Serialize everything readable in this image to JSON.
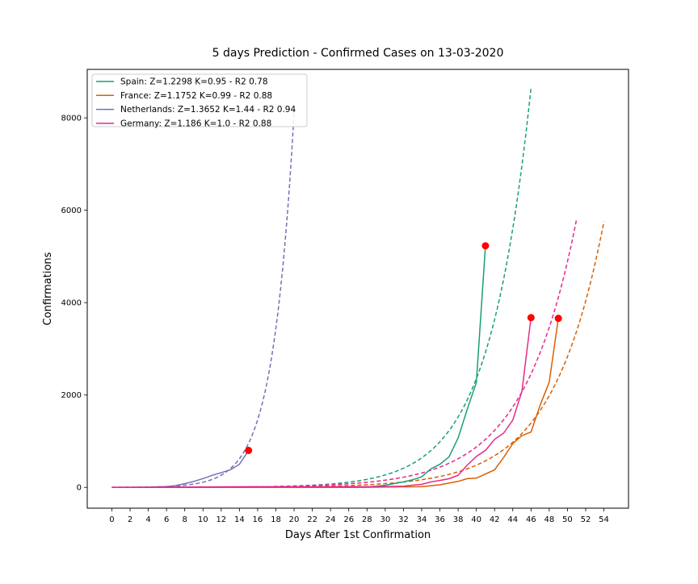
{
  "chart_data": {
    "type": "line",
    "title": "5 days Prediction - Confirmed Cases on 13-03-2020",
    "xlabel": "Days After 1st Confirmation",
    "ylabel": "Confirmations",
    "xlim": [
      -2.7,
      56.7
    ],
    "ylim": [
      -450,
      9050
    ],
    "x_ticks": [
      0,
      2,
      4,
      6,
      8,
      10,
      12,
      14,
      16,
      18,
      20,
      22,
      24,
      26,
      28,
      30,
      32,
      34,
      36,
      38,
      40,
      42,
      44,
      46,
      48,
      50,
      52,
      54
    ],
    "y_ticks": [
      0,
      2000,
      4000,
      6000,
      8000
    ],
    "grid": false,
    "legend_position": "top-left",
    "colors": {
      "spain": "#1b9e77",
      "france": "#d95f02",
      "netherlands": "#7570b3",
      "germany": "#e7298a",
      "marker": "#ff0000"
    },
    "series": [
      {
        "name": "Spain: Z=1.2298 K=0.95 - R2 0.78",
        "color": "#1b9e77",
        "actual": {
          "x": [
            0,
            2,
            4,
            6,
            8,
            10,
            12,
            14,
            16,
            18,
            20,
            22,
            24,
            26,
            28,
            30,
            32,
            33,
            34,
            35,
            36,
            37,
            38,
            39,
            40,
            41
          ],
          "y": [
            0,
            0,
            0,
            0,
            0,
            0,
            0,
            0,
            0,
            1,
            2,
            2,
            2,
            2,
            6,
            45,
            120,
            165,
            230,
            400,
            500,
            660,
            1070,
            1690,
            2270,
            5230
          ]
        },
        "prediction": {
          "start": 0,
          "end": 46,
          "a": 0.4,
          "b": 0.217
        },
        "last_point": {
          "x": 41,
          "y": 5230
        }
      },
      {
        "name": "France: Z=1.1752 K=0.99 - R2 0.88",
        "color": "#d95f02",
        "actual": {
          "x": [
            0,
            4,
            8,
            12,
            16,
            20,
            24,
            28,
            32,
            34,
            36,
            38,
            39,
            40,
            42,
            43,
            44,
            45,
            46,
            47,
            48,
            49
          ],
          "y": [
            0,
            0,
            0,
            0,
            0,
            0,
            0,
            2,
            12,
            14,
            57,
            130,
            190,
            200,
            380,
            650,
            950,
            1120,
            1200,
            1780,
            2280,
            3660
          ]
        },
        "prediction": {
          "start": 0,
          "end": 54,
          "a": 0.4,
          "b": 0.1773
        },
        "last_point": {
          "x": 49,
          "y": 3660
        }
      },
      {
        "name": "Netherlands: Z=1.3652 K=1.44 - R2 0.94",
        "color": "#7570b3",
        "actual": {
          "x": [
            0,
            2,
            4,
            6,
            7,
            8,
            9,
            10,
            11,
            12,
            13,
            14,
            15
          ],
          "y": [
            0,
            0,
            5,
            18,
            40,
            80,
            130,
            190,
            260,
            320,
            380,
            500,
            800
          ]
        },
        "prediction": {
          "start": 0,
          "end": 20,
          "a": 1.55,
          "b": 0.4281
        },
        "last_point": {
          "x": 15,
          "y": 800
        }
      },
      {
        "name": "Germany: Z=1.186 K=1.0 - R2 0.88",
        "color": "#e7298a",
        "actual": {
          "x": [
            0,
            4,
            8,
            12,
            16,
            20,
            24,
            28,
            30,
            32,
            33,
            34,
            35,
            36,
            37,
            38,
            39,
            40,
            41,
            42,
            43,
            44,
            45,
            46
          ],
          "y": [
            1,
            4,
            8,
            12,
            14,
            14,
            16,
            16,
            18,
            27,
            48,
            66,
            117,
            150,
            188,
            262,
            482,
            670,
            800,
            1040,
            1176,
            1457,
            2078,
            3675
          ]
        },
        "prediction": {
          "start": 0,
          "end": 51,
          "a": 0.9,
          "b": 0.172
        },
        "last_point": {
          "x": 46,
          "y": 3675
        }
      }
    ]
  }
}
